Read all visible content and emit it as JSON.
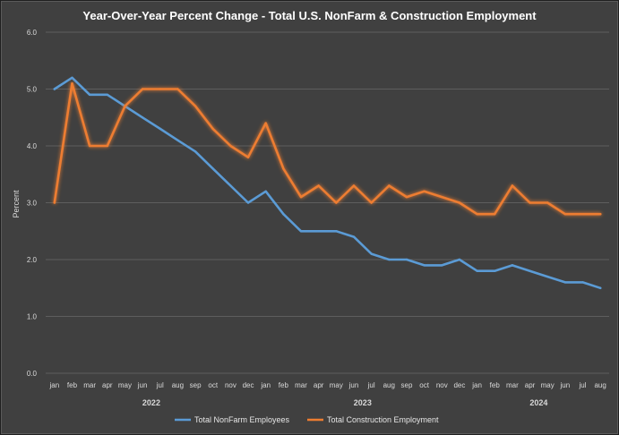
{
  "chart_data": {
    "type": "line",
    "title": "Year-Over-Year Percent Change - Total U.S. NonFarm & Construction Employment",
    "xlabel": "",
    "ylabel": "Percent",
    "ylim": [
      0,
      6
    ],
    "yticks": [
      "0.0",
      "1.0",
      "2.0",
      "3.0",
      "4.0",
      "5.0",
      "6.0"
    ],
    "categories": [
      "jan",
      "feb",
      "mar",
      "apr",
      "may",
      "jun",
      "jul",
      "aug",
      "sep",
      "oct",
      "nov",
      "dec",
      "jan",
      "feb",
      "mar",
      "apr",
      "may",
      "jun",
      "jul",
      "aug",
      "sep",
      "oct",
      "nov",
      "dec",
      "jan",
      "feb",
      "mar",
      "apr",
      "may",
      "jun",
      "jul",
      "aug"
    ],
    "years": [
      {
        "label": "2022",
        "start": 0,
        "end": 11
      },
      {
        "label": "2023",
        "start": 12,
        "end": 23
      },
      {
        "label": "2024",
        "start": 24,
        "end": 31
      }
    ],
    "legend_position": "bottom",
    "series": [
      {
        "name": "Total NonFarm Employees",
        "color": "#5b9bd5",
        "values": [
          5.0,
          5.2,
          4.9,
          4.9,
          4.7,
          4.5,
          4.3,
          4.1,
          3.9,
          3.6,
          3.3,
          3.0,
          3.2,
          2.8,
          2.5,
          2.5,
          2.5,
          2.4,
          2.1,
          2.0,
          2.0,
          1.9,
          1.9,
          2.0,
          1.8,
          1.8,
          1.9,
          1.8,
          1.7,
          1.6,
          1.6,
          1.5
        ]
      },
      {
        "name": "Total Construction Employment",
        "color": "#ed7d31",
        "values": [
          3.0,
          5.1,
          4.0,
          4.0,
          4.7,
          5.0,
          5.0,
          5.0,
          4.7,
          4.3,
          4.0,
          3.8,
          4.4,
          3.6,
          3.1,
          3.3,
          3.0,
          3.3,
          3.0,
          3.3,
          3.1,
          3.2,
          3.1,
          3.0,
          2.8,
          2.8,
          3.3,
          3.0,
          3.0,
          2.8,
          2.8,
          2.8
        ]
      }
    ]
  }
}
